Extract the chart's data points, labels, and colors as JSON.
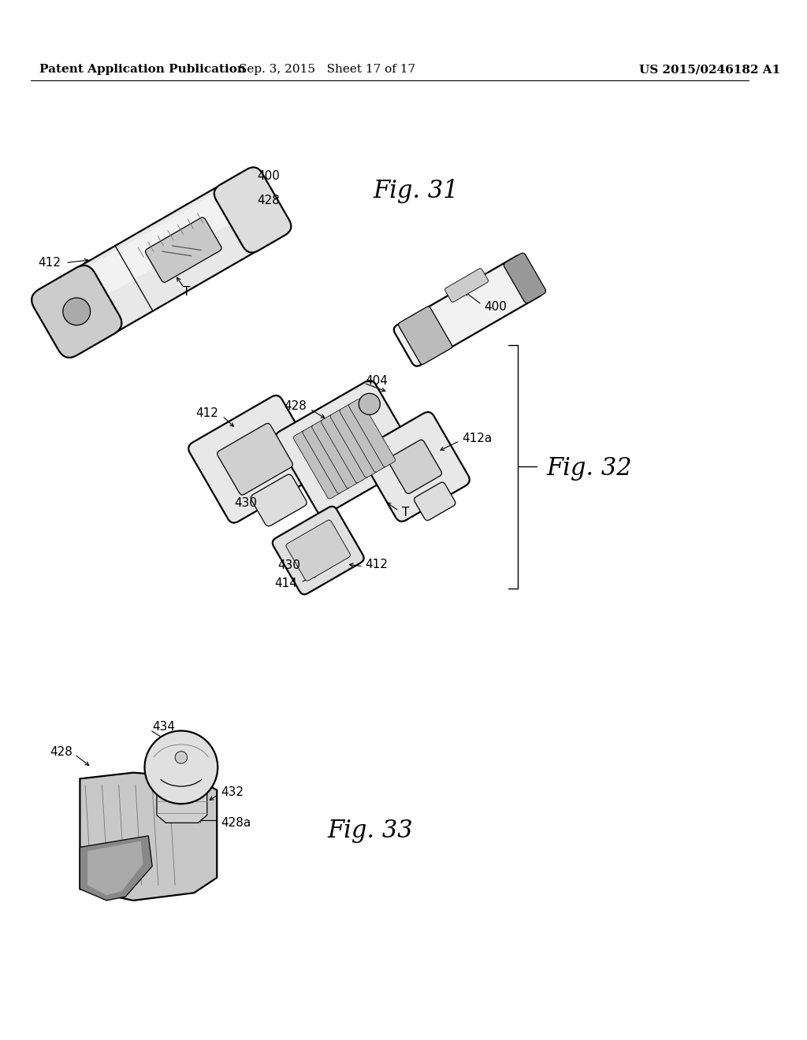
{
  "bg_color": "#ffffff",
  "text_color": "#000000",
  "header_left": "Patent Application Publication",
  "header_center": "Sep. 3, 2015   Sheet 17 of 17",
  "header_right": "US 2015/0246182 A1",
  "fig31_label": "Fig. 31",
  "fig32_label": "Fig. 32",
  "fig33_label": "Fig. 33",
  "header_fontsize": 11,
  "fig_label_fontsize": 22,
  "ref_fontsize": 11,
  "lw_main": 1.6,
  "lw_thin": 0.9,
  "lw_hair": 0.6,
  "gray_fill": "#e8e8e8",
  "gray_mid": "#d0d0d0",
  "gray_dark": "#aaaaaa",
  "gray_light": "#f2f2f2"
}
